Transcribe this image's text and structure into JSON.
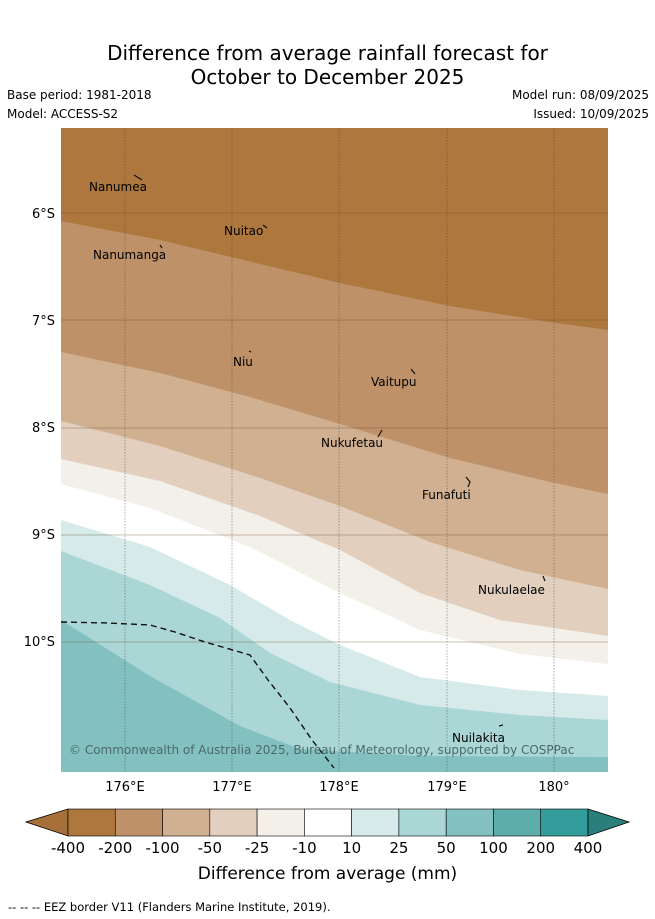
{
  "header": {
    "title_line1": "Difference from average rainfall forecast for",
    "title_line2": "October to December 2025",
    "base_period": "Base period: 1981-2018",
    "model": "Model: ACCESS-S2",
    "model_run": "Model run: 08/09/2025",
    "issued": "Issued: 10/09/2025"
  },
  "map": {
    "latitude_labels": [
      "6°S",
      "7°S",
      "8°S",
      "9°S",
      "10°S"
    ],
    "longitude_labels": [
      "176°E",
      "177°E",
      "178°E",
      "179°E",
      "180°"
    ],
    "islands": [
      "Nanumea",
      "Nuitao",
      "Nanumanga",
      "Niu",
      "Vaitupu",
      "Nukufetau",
      "Funafuti",
      "Nukulaelae",
      "Nuilakita"
    ],
    "copyright": "© Commonwealth of Australia 2025, Bureau of Meteorology, supported by COSPPac"
  },
  "colorbar": {
    "tick_labels": [
      "-400",
      "-200",
      "-100",
      "-50",
      "-25",
      "-10",
      "10",
      "25",
      "50",
      "100",
      "200",
      "400"
    ],
    "colors": [
      "#a6703a",
      "#ad773e",
      "#be9169",
      "#d0b091",
      "#e2cfbd",
      "#f3efe9",
      "#ffffff",
      "#d5eae9",
      "#aad6d5",
      "#83c1c0",
      "#5cadab",
      "#339d9b",
      "#2a7f7d"
    ],
    "title": "Difference from average (mm)"
  },
  "legend": {
    "eez_text": "-- -- -- EEZ border V11 (Flanders Marine Institute, 2019)."
  }
}
